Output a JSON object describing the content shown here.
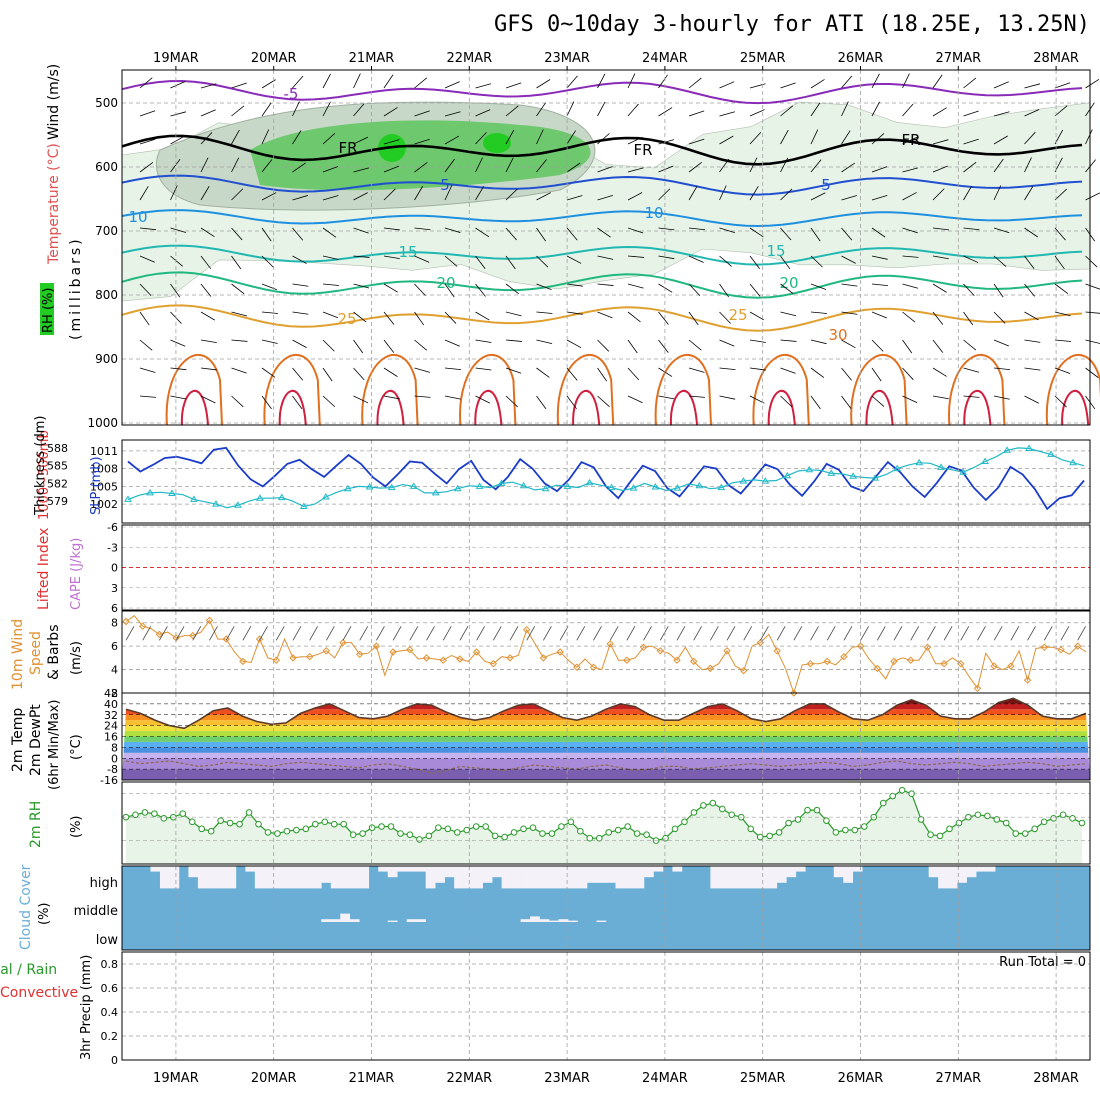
{
  "title": "GFS 0~10day 3-hourly for ATI (18.25E, 13.25N)",
  "dates": [
    "19MAR",
    "20MAR",
    "21MAR",
    "22MAR",
    "23MAR",
    "24MAR",
    "25MAR",
    "26MAR",
    "27MAR",
    "28MAR"
  ],
  "colors": {
    "frame": "#000000",
    "grid": "#a0a0a0",
    "rh_light": "#e8f3e8",
    "rh_mid": "#c8d8c8",
    "rh_dark": "#6ec86e",
    "rh_peak": "#22cc22",
    "slp": "#1a3cc8",
    "thickness": "#20b8c8",
    "lifted": "#e03030",
    "cape": "#c070d0",
    "wind": "#e09030",
    "rh2m": "#2a9a2a",
    "rh2m_fill": "#e9f4e9",
    "cloud": "#6aaed6",
    "cloud_clear": "#f4f2f8",
    "precip_total": "#2a9a2a",
    "precip_conv": "#e03030"
  },
  "panels": {
    "profile": {
      "ylabels": [
        "Wind (m/s)",
        "Temperature (°C)",
        "RH (%)",
        "(millibars)"
      ],
      "levels": [
        "500",
        "600",
        "700",
        "800",
        "900",
        "1000"
      ],
      "isotherm_labels": [
        "-5",
        "5",
        "FR",
        "FR",
        "FR",
        "5",
        "10",
        "10",
        "15",
        "15",
        "20",
        "20",
        "25",
        "25",
        "30",
        "5",
        "5"
      ]
    },
    "slp": {
      "ylabels": [
        "1000~500mb",
        "Thickness (dm)",
        "SLP (mb)"
      ],
      "left_ticks": [
        "588",
        "585",
        "582",
        "579"
      ],
      "right_ticks": [
        "1011",
        "1008",
        "1005",
        "1002"
      ]
    },
    "cape": {
      "ylabels": [
        "Lifted Index",
        "CAPE (J/kg)"
      ],
      "ticks": [
        "-6",
        "-3",
        "0",
        "3",
        "6"
      ]
    },
    "wind": {
      "ylabels": [
        "10m Wind",
        "Speed",
        "& Barbs",
        "(m/s)"
      ],
      "ticks": [
        "8",
        "6",
        "4",
        "2"
      ]
    },
    "temp": {
      "ylabels": [
        "2m Temp",
        "2m DewPt",
        "(6hr Min/Max)",
        "(°C)"
      ],
      "ticks": [
        "48",
        "40",
        "32",
        "24",
        "16",
        "8",
        "0",
        "-8",
        "-16"
      ]
    },
    "rh2m": {
      "ylabels": [
        "2m RH",
        "(%)"
      ]
    },
    "cloud": {
      "ylabels": [
        "Cloud Cover",
        "(%)"
      ],
      "tiers": [
        "high",
        "middle",
        "low"
      ]
    },
    "precip": {
      "ylabels": [
        "Total / Rain",
        "Convective",
        "3hr Precip (mm)"
      ],
      "ticks": [
        "0.8",
        "0.6",
        "0.4",
        "0.2",
        "0"
      ],
      "run_total": "Run Total = 0"
    }
  },
  "chart_data": [
    {
      "type": "line",
      "name_ref": "slp",
      "series": [
        {
          "name": "SLP (mb)",
          "unit": "mb",
          "values": [
            1009.2,
            1007.5,
            1008.6,
            1009.8,
            1010.0,
            1009.5,
            1008.9,
            1011.2,
            1011.5,
            1008.5,
            1006.2,
            1005.0,
            1006.8,
            1008.8,
            1009.5,
            1007.9,
            1006.6,
            1008.5,
            1010.3,
            1008.8,
            1006.5,
            1005.0,
            1007.0,
            1009.2,
            1009.0,
            1007.2,
            1005.5,
            1007.9,
            1009.3,
            1006.1,
            1004.5,
            1006.6,
            1009.6,
            1008.0,
            1005.5,
            1004.2,
            1006.2,
            1009.1,
            1008.2,
            1005.0,
            1003.0,
            1005.8,
            1008.5,
            1007.6,
            1004.7,
            1003.3,
            1005.8,
            1008.4,
            1008.0,
            1005.2,
            1003.8,
            1006.2,
            1008.7,
            1007.9,
            1005.3,
            1003.4,
            1005.9,
            1008.8,
            1007.8,
            1005.0,
            1004.2,
            1006.6,
            1009.1,
            1007.4,
            1005.0,
            1003.2,
            1005.6,
            1008.4,
            1007.7,
            1004.8,
            1002.7,
            1004.8,
            1008.3,
            1007.0,
            1004.5,
            1001.2,
            1003.0,
            1003.5,
            1006.0
          ]
        },
        {
          "name": "1000~500mb Thickness (dm)",
          "unit": "dm",
          "values": [
            579.3,
            580.0,
            580.4,
            580.5,
            580.3,
            580.1,
            579.3,
            578.9,
            578.5,
            577.9,
            578.3,
            579.0,
            579.5,
            579.5,
            579.6,
            579.0,
            578.1,
            578.5,
            579.7,
            580.5,
            581.1,
            581.5,
            581.4,
            581.2,
            581.3,
            581.8,
            581.5,
            580.4,
            580.4,
            580.6,
            581.1,
            581.6,
            581.5,
            581.3,
            582.0,
            582.2,
            581.6,
            580.9,
            581.1,
            581.7,
            581.5,
            581.3,
            582.1,
            581.7,
            581.3,
            580.8,
            581.2,
            582.0,
            581.4,
            580.8,
            581.2,
            581.9,
            581.6,
            581.1,
            581.3,
            582.1,
            582.4,
            582.6,
            582.4,
            582.5,
            583.3,
            584.1,
            584.3,
            584.2,
            583.7,
            583.6,
            583.2,
            583.0,
            582.9,
            583.5,
            584.5,
            585.1,
            585.5,
            585.4,
            584.7,
            584.3,
            583.9,
            584.7,
            585.7,
            586.5,
            587.6,
            588.0,
            587.9,
            587.4,
            586.9,
            586.0,
            585.5,
            585.0
          ]
        }
      ],
      "xlabel": "",
      "ylabel": "SLP (mb)"
    },
    {
      "type": "line",
      "name_ref": "wind",
      "series": [
        {
          "name": "10m Wind Speed",
          "unit": "m/s",
          "values": [
            8.1,
            8.6,
            7.7,
            7.5,
            7.0,
            7.2,
            6.7,
            6.9,
            6.9,
            7.2,
            8.2,
            6.6,
            6.6,
            5.5,
            4.7,
            4.6,
            6.6,
            5.0,
            4.8,
            6.6,
            5.0,
            5.1,
            5.1,
            5.3,
            5.6,
            5.0,
            6.3,
            6.3,
            5.3,
            5.4,
            6.0,
            3.5,
            5.5,
            5.6,
            5.7,
            4.9,
            5.0,
            4.9,
            4.8,
            5.2,
            4.9,
            4.7,
            5.5,
            4.7,
            4.5,
            5.1,
            5.0,
            5.2,
            7.4,
            6.2,
            5.0,
            5.3,
            5.5,
            4.8,
            4.2,
            4.9,
            4.2,
            4.0,
            6.2,
            4.8,
            4.8,
            5.0,
            5.9,
            6.0,
            5.6,
            5.4,
            4.8,
            5.9,
            4.7,
            4.0,
            4.1,
            4.5,
            5.6,
            4.3,
            3.9,
            6.0,
            6.3,
            7.0,
            5.6,
            4.1,
            2.0,
            4.4,
            4.5,
            4.5,
            4.7,
            4.4,
            5.1,
            5.9,
            6.0,
            4.9,
            4.1,
            3.2,
            4.7,
            5.0,
            4.8,
            4.8,
            5.9,
            4.5,
            4.5,
            5.0,
            4.5,
            3.4,
            2.4,
            5.4,
            4.3,
            4.0,
            4.3,
            5.6,
            3.1,
            5.8,
            5.9,
            5.9,
            5.7,
            5.3,
            6.0,
            5.5
          ]
        }
      ],
      "ylim": [
        2,
        9
      ],
      "xlabel": "",
      "ylabel": "(m/s)"
    },
    {
      "type": "area",
      "name_ref": "rh2m",
      "series": [
        {
          "name": "2m RH",
          "unit": "%",
          "values": [
            40,
            42,
            44,
            43,
            39,
            40,
            43,
            36,
            30,
            28,
            37,
            35,
            34,
            44,
            34,
            27,
            26,
            28,
            29,
            30,
            34,
            36,
            34,
            34,
            25,
            26,
            31,
            32,
            32,
            26,
            25,
            21,
            24,
            31,
            30,
            27,
            29,
            32,
            32,
            24,
            23,
            27,
            30,
            31,
            26,
            26,
            32,
            36,
            28,
            22,
            22,
            27,
            29,
            32,
            26,
            25,
            20,
            22,
            30,
            36,
            44,
            50,
            52,
            47,
            42,
            40,
            30,
            23,
            24,
            27,
            35,
            38,
            46,
            46,
            37,
            27,
            29,
            29,
            32,
            40,
            52,
            58,
            63,
            60,
            38,
            25,
            24,
            30,
            35,
            40,
            42,
            41,
            38,
            35,
            26,
            26,
            30,
            36,
            39,
            42,
            39,
            35
          ]
        }
      ]
    },
    {
      "type": "area",
      "name_ref": "temp",
      "series": [
        {
          "name": "2m Temp",
          "unit": "°C",
          "values": [
            36,
            33,
            28,
            24,
            22,
            28,
            35,
            37,
            31,
            27,
            25,
            26,
            33,
            37,
            40,
            35,
            30,
            29,
            31,
            36,
            40,
            39,
            34,
            30,
            28,
            30,
            35,
            39,
            40,
            35,
            30,
            28,
            31,
            36,
            40,
            38,
            32,
            28,
            28,
            33,
            38,
            40,
            35,
            29,
            27,
            29,
            35,
            40,
            40,
            34,
            29,
            28,
            32,
            39,
            43,
            39,
            31,
            29,
            29,
            34,
            41,
            44,
            39,
            31,
            29,
            29,
            33
          ]
        },
        {
          "name": "2m DewPt",
          "unit": "°C",
          "values": [
            -2,
            -4,
            -3,
            -2,
            -4,
            -6,
            -5,
            -3,
            -4,
            -5,
            -6,
            -4,
            -3,
            -4,
            -5,
            -6,
            -7,
            -5,
            -4,
            -6,
            -8,
            -11,
            -9,
            -6,
            -7,
            -8,
            -9,
            -7,
            -5,
            -6,
            -7,
            -8,
            -6,
            -5,
            -7,
            -9,
            -8,
            -6,
            -6,
            -8,
            -7,
            -6,
            -5,
            -4,
            -5,
            -6,
            -5,
            -4,
            -3,
            -4,
            -6,
            -5,
            -3,
            -2,
            -4,
            -5,
            -4,
            -3,
            -4,
            -6,
            -5,
            -4,
            -3,
            -4,
            -6,
            -5,
            -4
          ]
        }
      ],
      "ylim": [
        -16,
        48
      ]
    },
    {
      "type": "bar",
      "name_ref": "cloud",
      "series": [
        {
          "name": "high",
          "unit": "%",
          "values": [
            100,
            100,
            100,
            80,
            20,
            20,
            100,
            60,
            20,
            20,
            20,
            20,
            100,
            80,
            20,
            20,
            20,
            20,
            20,
            20,
            20,
            40,
            20,
            20,
            20,
            20,
            100,
            80,
            60,
            80,
            80,
            80,
            20,
            40,
            60,
            20,
            20,
            20,
            40,
            60,
            20,
            20,
            20,
            20,
            20,
            20,
            20,
            20,
            20,
            40,
            40,
            40,
            20,
            20,
            20,
            60,
            80,
            100,
            80,
            100,
            100,
            100,
            20,
            20,
            20,
            20,
            20,
            20,
            20,
            40,
            60,
            80,
            100,
            100,
            100,
            60,
            40,
            80,
            100,
            100,
            100,
            100,
            100,
            100,
            100,
            60,
            20,
            20,
            40,
            60,
            80,
            80,
            100,
            100,
            100,
            100,
            100,
            100,
            100,
            100,
            100,
            100
          ]
        },
        {
          "name": "middle",
          "unit": "%",
          "values": [
            100,
            100,
            100,
            100,
            100,
            100,
            100,
            100,
            100,
            100,
            100,
            100,
            100,
            100,
            100,
            100,
            100,
            100,
            100,
            100,
            100,
            90,
            90,
            70,
            90,
            100,
            100,
            100,
            95,
            100,
            90,
            90,
            100,
            100,
            100,
            100,
            100,
            100,
            100,
            100,
            100,
            100,
            90,
            80,
            90,
            95,
            90,
            95,
            100,
            100,
            95,
            100,
            100,
            100,
            100,
            100,
            100,
            100,
            100,
            100,
            100,
            100,
            100,
            100,
            100,
            100,
            100,
            100,
            100,
            100,
            100,
            100,
            100,
            100,
            100,
            100,
            100,
            100,
            100,
            100,
            100,
            100,
            100,
            100,
            100,
            100,
            100,
            100,
            100,
            100,
            100,
            100,
            100,
            100,
            100,
            100,
            100,
            100,
            100,
            100,
            100,
            100
          ]
        },
        {
          "name": "low",
          "unit": "%",
          "values": [
            100,
            100,
            100,
            100,
            100,
            100,
            100,
            100,
            100,
            100,
            100,
            100,
            100,
            100,
            100,
            100,
            100,
            100,
            100,
            100,
            100,
            100,
            100,
            100,
            100,
            100,
            100,
            100,
            100,
            100,
            100,
            100,
            100,
            100,
            100,
            100,
            100,
            100,
            100,
            100,
            100,
            100,
            100,
            100,
            100,
            100,
            100,
            100,
            100,
            100,
            100,
            100,
            100,
            100,
            100,
            100,
            100,
            100,
            100,
            100,
            100,
            100,
            100,
            100,
            100,
            100,
            100,
            100,
            100,
            100,
            100,
            100,
            100,
            100,
            100,
            100,
            100,
            100,
            100,
            100,
            100,
            100,
            100,
            100,
            100,
            100,
            100,
            100,
            100,
            100,
            100,
            100,
            100,
            100,
            100,
            100,
            100,
            100,
            100,
            100,
            100,
            100
          ]
        }
      ]
    },
    {
      "type": "bar",
      "name_ref": "precip",
      "categories": [],
      "values": [],
      "ylim": [
        0,
        0.9
      ],
      "ylabel": "3hr Precip (mm)"
    }
  ]
}
